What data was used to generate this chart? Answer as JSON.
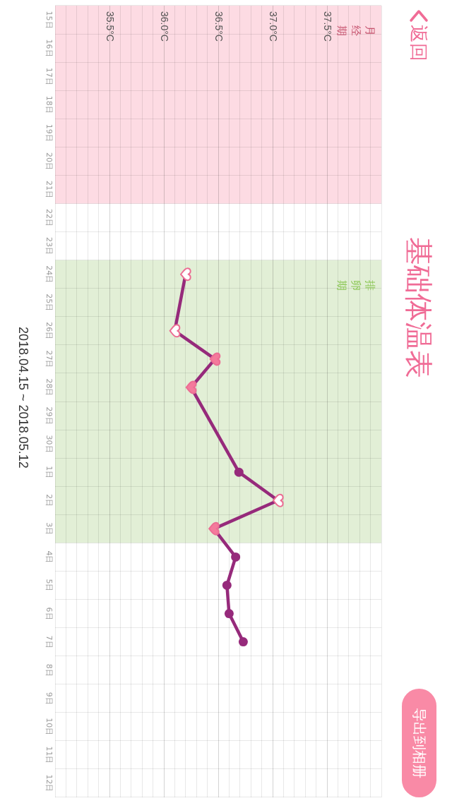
{
  "chart_data": {
    "type": "line",
    "orientation": "horizontal",
    "title": "基础体温表",
    "categories": [
      "15日",
      "16日",
      "17日",
      "18日",
      "19日",
      "20日",
      "21日",
      "22日",
      "23日",
      "24日",
      "25日",
      "26日",
      "27日",
      "28日",
      "29日",
      "30日",
      "1日",
      "2日",
      "3日",
      "4日",
      "5日",
      "6日",
      "7日",
      "8日",
      "9日",
      "10日",
      "11日",
      "12日"
    ],
    "series": [
      {
        "color": "#962a7b",
        "marker": "none",
        "values": [
          null,
          null,
          null,
          null,
          null,
          null,
          null,
          null,
          null,
          36.2,
          null,
          36.1,
          36.47,
          36.25,
          null,
          null,
          36.69,
          37.05,
          36.46,
          36.66,
          36.58,
          36.6,
          36.73,
          null,
          null,
          null,
          null,
          null
        ]
      },
      {
        "type": "scatter",
        "color": "#962a7b",
        "marker": "circle",
        "values": [
          null,
          null,
          null,
          null,
          null,
          null,
          null,
          null,
          null,
          null,
          null,
          null,
          null,
          null,
          null,
          null,
          36.69,
          null,
          null,
          36.66,
          36.58,
          36.6,
          36.73,
          null,
          null,
          null,
          null,
          null
        ]
      },
      {
        "type": "scatter",
        "color": "#f47a9c",
        "values": [
          null,
          null,
          null,
          null,
          null,
          null,
          null,
          null,
          null,
          null,
          null,
          null,
          36.47,
          36.25,
          null,
          null,
          null,
          null,
          36.46,
          null,
          null,
          null,
          null,
          null,
          null,
          null,
          null,
          null
        ]
      },
      {
        "type": "scatter",
        "color": "#ffffff",
        "values": [
          null,
          null,
          null,
          null,
          null,
          null,
          null,
          null,
          null,
          36.2,
          null,
          36.1,
          null,
          null,
          null,
          null,
          null,
          37.05,
          null,
          null,
          null,
          null,
          null,
          null,
          null,
          null,
          null,
          null
        ]
      }
    ],
    "xlim": [
      35,
      38
    ],
    "xticks": [
      {
        "value": 35,
        "label": null
      },
      {
        "value": 35.1,
        "label": null
      },
      {
        "value": 35.2,
        "label": null
      },
      {
        "value": 35.3,
        "label": null
      },
      {
        "value": 35.4,
        "label": null
      },
      {
        "value": 35.5,
        "label": "35.5°C"
      },
      {
        "value": 35.6,
        "label": null
      },
      {
        "value": 35.7,
        "label": null
      },
      {
        "value": 35.8,
        "label": null
      },
      {
        "value": 35.9,
        "label": null
      },
      {
        "value": 36,
        "label": "36.0°C"
      },
      {
        "value": 36.1,
        "label": null
      },
      {
        "value": 36.2,
        "label": null
      },
      {
        "value": 36.3,
        "label": null
      },
      {
        "value": 36.4,
        "label": null
      },
      {
        "value": 36.5,
        "label": "36.5°C"
      },
      {
        "value": 36.6,
        "label": null
      },
      {
        "value": 36.7,
        "label": null
      },
      {
        "value": 36.8,
        "label": null
      },
      {
        "value": 36.9,
        "label": null
      },
      {
        "value": 37,
        "label": "37.0°C"
      },
      {
        "value": 37.1,
        "label": null
      },
      {
        "value": 37.2,
        "label": null
      },
      {
        "value": 37.3,
        "label": null
      },
      {
        "value": 37.4,
        "label": null
      },
      {
        "value": 37.5,
        "label": "37.5°C"
      },
      {
        "value": 37.6,
        "label": null
      },
      {
        "value": 37.7,
        "label": null
      },
      {
        "value": 37.8,
        "label": null
      },
      {
        "value": 37.9,
        "label": null
      },
      {
        "value": 38,
        "label": null
      }
    ],
    "grid": true,
    "bands": [
      {
        "axis": "y",
        "from": "15日",
        "to": "21日",
        "label": "月经期",
        "color": "#fddbe3"
      },
      {
        "axis": "y",
        "from": "24日",
        "to": "3日",
        "label": "排卵期",
        "color": "#e2efd6"
      }
    ],
    "annotations": [
      "返回",
      "导出到相册",
      "2018.04.15 ~ 2018.05.12"
    ]
  }
}
